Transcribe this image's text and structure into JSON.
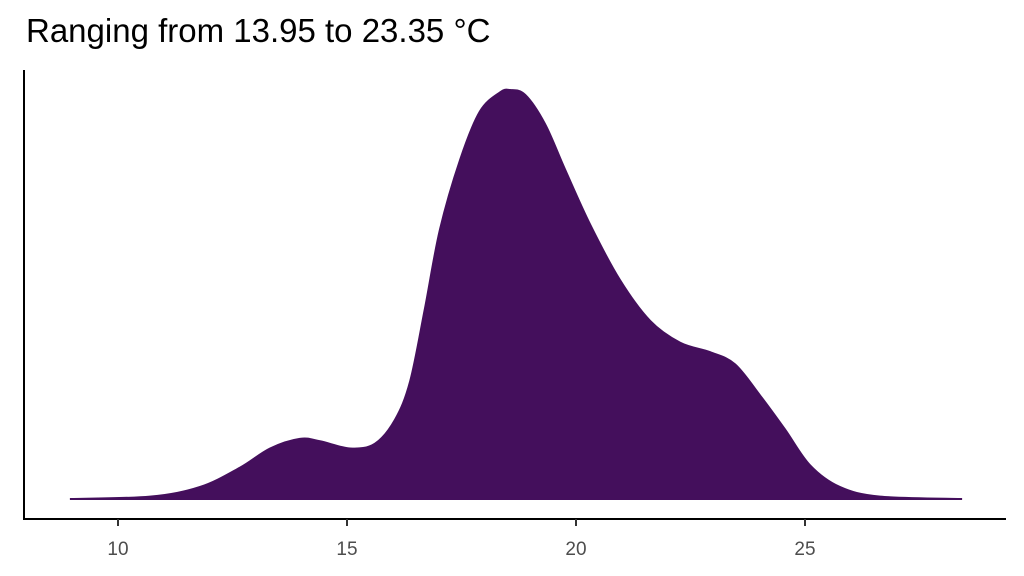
{
  "chart_data": {
    "type": "area",
    "title": "Ranging from 13.95 to 23.35 °C",
    "xlabel": "",
    "ylabel": "",
    "xlim": [
      8.0,
      29.0
    ],
    "ylim": [
      0,
      0.17
    ],
    "x_ticks": [
      "10",
      "15",
      "20",
      "25"
    ],
    "grid": false,
    "fill_color": "#440F5C",
    "x": [
      8.95,
      10.7,
      11.79,
      12.66,
      13.32,
      13.97,
      14.41,
      15.07,
      15.61,
      16.05,
      16.38,
      16.7,
      17.03,
      17.47,
      17.9,
      18.34,
      18.56,
      18.89,
      19.32,
      19.76,
      20.31,
      20.96,
      21.62,
      22.27,
      22.93,
      23.47,
      24.02,
      24.56,
      25.11,
      25.76,
      26.64,
      28.43
    ],
    "y": [
      0,
      0.001,
      0.005,
      0.013,
      0.021,
      0.025,
      0.024,
      0.021,
      0.023,
      0.033,
      0.049,
      0.079,
      0.112,
      0.141,
      0.161,
      0.169,
      0.17,
      0.168,
      0.156,
      0.137,
      0.114,
      0.091,
      0.074,
      0.065,
      0.061,
      0.056,
      0.043,
      0.029,
      0.014,
      0.005,
      0.001,
      0
    ]
  }
}
